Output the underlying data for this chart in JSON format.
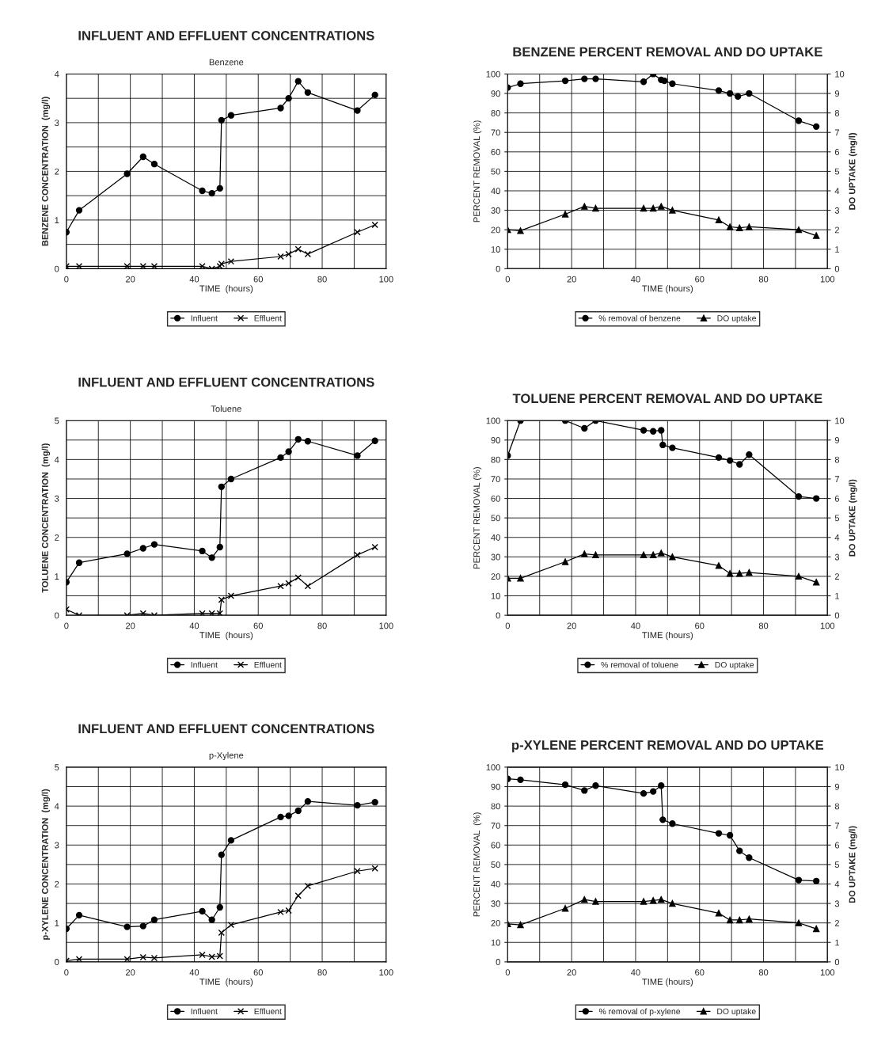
{
  "chart_data": [
    {
      "type": "line",
      "title": "INFLUENT AND EFFLUENT CONCENTRATIONS",
      "subtitle": "Benzene",
      "xlabel": "TIME  (hours)",
      "ylabel": "BENZENE CONCENTRATION  (mg/l)",
      "xlim": [
        0,
        100
      ],
      "xticks": [
        0,
        {
          "value": 10,
          "label": null
        },
        20,
        {
          "value": 30,
          "label": null
        },
        40,
        {
          "value": 50,
          "label": null
        },
        60,
        {
          "value": 70,
          "label": null
        },
        80,
        {
          "value": 90,
          "label": null
        },
        100
      ],
      "ylim": [
        0,
        4
      ],
      "yticks": [
        0,
        {
          "value": 0.5,
          "label": null
        },
        1,
        {
          "value": 1.5,
          "label": null
        },
        2,
        {
          "value": 2.5,
          "label": null
        },
        3,
        {
          "value": 3.5,
          "label": null
        },
        4
      ],
      "grid": true,
      "legend": "bottom",
      "series": [
        {
          "name": "Influent",
          "color": "#000000",
          "marker": "circle",
          "x": [
            0,
            4,
            19,
            24,
            27.5,
            42.5,
            45.5,
            48,
            48.5,
            51.5,
            67,
            69.5,
            72.5,
            75.5,
            91,
            96.5
          ],
          "values": [
            0.75,
            1.2,
            1.95,
            2.3,
            2.15,
            1.6,
            1.55,
            1.65,
            3.05,
            3.15,
            3.3,
            3.5,
            3.85,
            3.62,
            3.25,
            3.57
          ]
        },
        {
          "name": "Effluent",
          "color": "#000000",
          "marker": "cross",
          "x": [
            0,
            4,
            19,
            24,
            27.5,
            42.5,
            45.5,
            48,
            48.5,
            51.5,
            67,
            69.5,
            72.5,
            75.5,
            91,
            96.5
          ],
          "values": [
            0.05,
            0.05,
            0.05,
            0.05,
            0.05,
            0.05,
            0,
            0.05,
            0.1,
            0.15,
            0.25,
            0.3,
            0.4,
            0.3,
            0.75,
            0.9
          ]
        }
      ]
    },
    {
      "type": "line",
      "title": "BENZENE PERCENT REMOVAL AND DO UPTAKE",
      "xlabel": "TIME (hours)",
      "ylabel": "PERCENT REMOVAL (%)",
      "y2label": "DO UPTAKE (mg/l)",
      "xlim": [
        0,
        100
      ],
      "xticks": [
        0,
        {
          "value": 10,
          "label": null
        },
        20,
        {
          "value": 30,
          "label": null
        },
        40,
        {
          "value": 50,
          "label": null
        },
        60,
        {
          "value": 70,
          "label": null
        },
        80,
        {
          "value": 90,
          "label": null
        },
        100
      ],
      "ylim": [
        0,
        100
      ],
      "yticks": [
        0,
        10,
        20,
        30,
        40,
        50,
        60,
        70,
        80,
        90,
        100
      ],
      "y2lim": [
        0,
        10
      ],
      "y2ticks": [
        0,
        1,
        2,
        3,
        4,
        5,
        6,
        7,
        8,
        9,
        10
      ],
      "grid": true,
      "legend": "bottom",
      "series": [
        {
          "name": "% removal of benzene",
          "color": "#000000",
          "marker": "circle",
          "x": [
            0,
            4,
            18,
            24,
            27.5,
            42.5,
            45.5,
            48,
            49,
            51.5,
            66,
            69.5,
            72,
            75.5,
            91,
            96.5
          ],
          "values": [
            93,
            95,
            96.5,
            97.5,
            97.5,
            96,
            100,
            97,
            96.5,
            95,
            91.5,
            90,
            88.5,
            90,
            76,
            73
          ]
        },
        {
          "name": "DO uptake",
          "color": "#000000",
          "marker": "triangle",
          "axis": "y2",
          "x": [
            0,
            4,
            18,
            24,
            27.5,
            42.5,
            45.5,
            48,
            51.5,
            66,
            69.5,
            72.5,
            75.5,
            91,
            96.5
          ],
          "values": [
            2,
            1.95,
            2.8,
            3.2,
            3.1,
            3.1,
            3.1,
            3.2,
            3.0,
            2.5,
            2.15,
            2.1,
            2.15,
            2,
            1.7
          ]
        }
      ]
    },
    {
      "type": "line",
      "title": "INFLUENT AND EFFLUENT CONCENTRATIONS",
      "subtitle": "Toluene",
      "xlabel": "TIME  (hours)",
      "ylabel": "TOLUENE CONCENTRATION  (mg/l)",
      "xlim": [
        0,
        100
      ],
      "xticks": [
        0,
        {
          "value": 10,
          "label": null
        },
        20,
        {
          "value": 30,
          "label": null
        },
        40,
        {
          "value": 50,
          "label": null
        },
        60,
        {
          "value": 70,
          "label": null
        },
        80,
        {
          "value": 90,
          "label": null
        },
        100
      ],
      "ylim": [
        0,
        5
      ],
      "yticks": [
        0,
        {
          "value": 0.5,
          "label": null
        },
        1,
        {
          "value": 1.5,
          "label": null
        },
        2,
        {
          "value": 2.5,
          "label": null
        },
        3,
        {
          "value": 3.5,
          "label": null
        },
        4,
        {
          "value": 4.5,
          "label": null
        },
        5
      ],
      "grid": true,
      "legend": "bottom",
      "series": [
        {
          "name": "Influent",
          "color": "#000000",
          "marker": "circle",
          "x": [
            0,
            4,
            19,
            24,
            27.5,
            42.5,
            45.5,
            48,
            48.5,
            51.5,
            67,
            69.5,
            72.5,
            75.5,
            91,
            96.5
          ],
          "values": [
            0.85,
            1.35,
            1.58,
            1.72,
            1.82,
            1.65,
            1.48,
            1.75,
            3.3,
            3.5,
            4.05,
            4.2,
            4.52,
            4.47,
            4.1,
            4.48
          ]
        },
        {
          "name": "Effluent",
          "color": "#000000",
          "marker": "cross",
          "x": [
            0,
            4,
            19,
            24,
            27.5,
            42.5,
            45.5,
            48,
            48.5,
            51.5,
            67,
            69.5,
            72.5,
            75.5,
            91,
            96.5
          ],
          "values": [
            0.15,
            0,
            0,
            0.05,
            0,
            0.05,
            0.05,
            0.05,
            0.4,
            0.5,
            0.75,
            0.82,
            0.97,
            0.75,
            1.55,
            1.75
          ]
        }
      ]
    },
    {
      "type": "line",
      "title": "TOLUENE PERCENT REMOVAL AND DO UPTAKE",
      "xlabel": "TIME (hours)",
      "ylabel": "PERCENT REMOVAL (%)",
      "y2label": "DO UPTAKE (mg/l)",
      "xlim": [
        0,
        100
      ],
      "xticks": [
        0,
        {
          "value": 10,
          "label": null
        },
        20,
        {
          "value": 30,
          "label": null
        },
        40,
        {
          "value": 50,
          "label": null
        },
        60,
        {
          "value": 70,
          "label": null
        },
        80,
        {
          "value": 90,
          "label": null
        },
        100
      ],
      "ylim": [
        0,
        100
      ],
      "yticks": [
        0,
        10,
        20,
        30,
        40,
        50,
        60,
        70,
        80,
        90,
        100
      ],
      "y2lim": [
        0,
        10
      ],
      "y2ticks": [
        0,
        1,
        2,
        3,
        4,
        5,
        6,
        7,
        8,
        9,
        10
      ],
      "grid": true,
      "legend": "bottom",
      "series": [
        {
          "name": "% removal of toluene",
          "color": "#000000",
          "marker": "circle",
          "x": [
            0,
            4,
            18,
            24,
            27.5,
            42.5,
            45.5,
            48,
            48.5,
            51.5,
            66,
            69.5,
            72.5,
            75.5,
            91,
            96.5
          ],
          "values": [
            82,
            100,
            100,
            96,
            100,
            95,
            94.5,
            95,
            87.5,
            86,
            81,
            79.5,
            77.5,
            82.5,
            61,
            60
          ]
        },
        {
          "name": "DO uptake",
          "color": "#000000",
          "marker": "triangle",
          "axis": "y2",
          "x": [
            0,
            4,
            18,
            24,
            27.5,
            42.5,
            45.5,
            48,
            51.5,
            66,
            69.5,
            72.5,
            75.5,
            91,
            96.5
          ],
          "values": [
            1.9,
            1.9,
            2.75,
            3.15,
            3.1,
            3.1,
            3.1,
            3.2,
            3.0,
            2.55,
            2.15,
            2.15,
            2.2,
            2.0,
            1.7
          ]
        }
      ]
    },
    {
      "type": "line",
      "title": "INFLUENT AND EFFLUENT CONCENTRATIONS",
      "subtitle": "p-Xylene",
      "xlabel": "TIME  (hours)",
      "ylabel": "p-XYLENE CONCENTRATION  (mg/l)",
      "xlim": [
        0,
        100
      ],
      "xticks": [
        0,
        {
          "value": 10,
          "label": null
        },
        20,
        {
          "value": 30,
          "label": null
        },
        40,
        {
          "value": 50,
          "label": null
        },
        60,
        {
          "value": 70,
          "label": null
        },
        80,
        {
          "value": 90,
          "label": null
        },
        100
      ],
      "ylim": [
        0,
        5
      ],
      "yticks": [
        0,
        {
          "value": 0.5,
          "label": null
        },
        1,
        {
          "value": 1.5,
          "label": null
        },
        2,
        {
          "value": 2.5,
          "label": null
        },
        3,
        {
          "value": 3.5,
          "label": null
        },
        4,
        {
          "value": 4.5,
          "label": null
        },
        5
      ],
      "grid": true,
      "legend": "bottom",
      "series": [
        {
          "name": "Influent",
          "color": "#000000",
          "marker": "circle",
          "x": [
            0,
            4,
            19,
            24,
            27.5,
            42.5,
            45.5,
            48,
            48.5,
            51.5,
            67,
            69.5,
            72.5,
            75.5,
            91,
            96.5
          ],
          "values": [
            0.85,
            1.2,
            0.9,
            0.92,
            1.08,
            1.3,
            1.08,
            1.4,
            2.75,
            3.12,
            3.72,
            3.75,
            3.88,
            4.12,
            4.02,
            4.1
          ]
        },
        {
          "name": "Effluent",
          "color": "#000000",
          "marker": "cross",
          "x": [
            0,
            4,
            19,
            24,
            27.5,
            42.5,
            45.5,
            48,
            48.5,
            51.5,
            67,
            69.5,
            72.5,
            75.5,
            91,
            96.5
          ],
          "values": [
            0.03,
            0.07,
            0.07,
            0.12,
            0.1,
            0.18,
            0.13,
            0.15,
            0.75,
            0.95,
            1.28,
            1.32,
            1.7,
            1.95,
            2.33,
            2.4
          ]
        }
      ]
    },
    {
      "type": "line",
      "title": "p-XYLENE PERCENT REMOVAL AND DO UPTAKE",
      "xlabel": "TIME (hours)",
      "ylabel": "PERCENT REMOVAL  (%)",
      "y2label": "DO UPTAKE (mg/l)",
      "xlim": [
        0,
        100
      ],
      "xticks": [
        0,
        {
          "value": 10,
          "label": null
        },
        20,
        {
          "value": 30,
          "label": null
        },
        40,
        {
          "value": 50,
          "label": null
        },
        60,
        {
          "value": 70,
          "label": null
        },
        80,
        {
          "value": 90,
          "label": null
        },
        100
      ],
      "ylim": [
        0,
        100
      ],
      "yticks": [
        0,
        10,
        20,
        30,
        40,
        50,
        60,
        70,
        80,
        90,
        100
      ],
      "y2lim": [
        0,
        10
      ],
      "y2ticks": [
        0,
        1,
        2,
        3,
        4,
        5,
        6,
        7,
        8,
        9,
        10
      ],
      "grid": true,
      "legend": "bottom",
      "series": [
        {
          "name": "% removal of p-xylene",
          "color": "#000000",
          "marker": "circle",
          "x": [
            0,
            4,
            18,
            24,
            27.5,
            42.5,
            45.5,
            48,
            48.5,
            51.5,
            66,
            69.5,
            72.5,
            75.5,
            91,
            96.5
          ],
          "values": [
            94,
            93.5,
            91,
            88,
            90.5,
            86.5,
            87.5,
            90.5,
            73,
            71,
            66,
            65,
            57,
            53.5,
            42,
            41.5
          ]
        },
        {
          "name": "DO uptake",
          "color": "#000000",
          "marker": "triangle",
          "axis": "y2",
          "x": [
            0,
            4,
            18,
            24,
            27.5,
            42.5,
            45.5,
            48,
            51.5,
            66,
            69.5,
            72.5,
            75.5,
            91,
            96.5
          ],
          "values": [
            1.95,
            1.9,
            2.75,
            3.2,
            3.1,
            3.1,
            3.15,
            3.2,
            3.0,
            2.5,
            2.15,
            2.15,
            2.2,
            2.0,
            1.7
          ]
        }
      ]
    }
  ]
}
